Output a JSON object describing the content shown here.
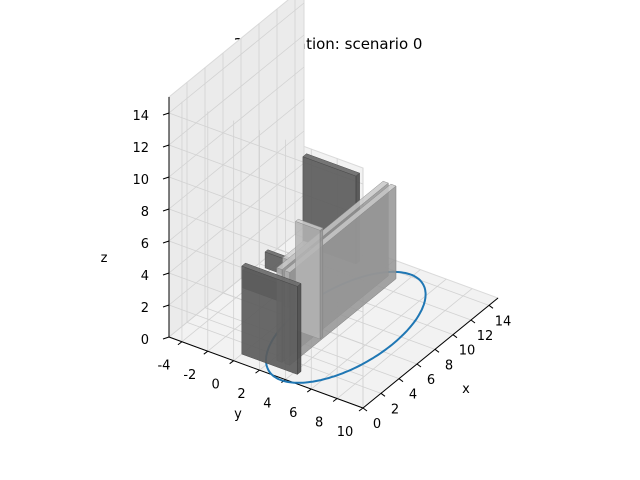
{
  "chart_data": {
    "type": "3d-line",
    "title": "3D animation: scenario 0",
    "xlabel": "x",
    "ylabel": "y",
    "zlabel": "z",
    "x_ticks": [
      0,
      2,
      4,
      6,
      8,
      10,
      12,
      14
    ],
    "y_ticks": [
      -4,
      -2,
      0,
      2,
      4,
      6,
      8,
      10
    ],
    "z_ticks": [
      0,
      2,
      4,
      6,
      8,
      10,
      12,
      14
    ],
    "xlim": [
      0,
      15
    ],
    "ylim": [
      -5,
      10
    ],
    "zlim": [
      0,
      15
    ],
    "grid": true,
    "trajectory": {
      "color": "#1f77b4",
      "shape": "ellipse",
      "center": [
        7.0,
        3.8,
        0
      ],
      "semi_axis_x": 7.2,
      "semi_axis_y": 3.6,
      "z": 0
    },
    "walls": [
      {
        "kind": "dark",
        "x": [
          0.9,
          1.3
        ],
        "y": [
          0,
          4.3
        ],
        "z": [
          0,
          5.5
        ],
        "color": "#5c5c5c"
      },
      {
        "kind": "dark",
        "x": [
          13.3,
          13.7
        ],
        "y": [
          -3.9,
          0.2
        ],
        "z": [
          0,
          5.5
        ],
        "color": "#5c5c5c"
      },
      {
        "kind": "light",
        "x": [
          1.5,
          13.3
        ],
        "y": [
          2.3,
          2.7
        ],
        "z": [
          0,
          5.8
        ],
        "color": "#aeaeae"
      },
      {
        "kind": "light",
        "x": [
          1.5,
          13.3
        ],
        "y": [
          2.9,
          3.3
        ],
        "z": [
          0,
          5.8
        ],
        "color": "#aeaeae"
      },
      {
        "kind": "light",
        "x": [
          5.0,
          5.3
        ],
        "y": [
          1.3,
          3.2
        ],
        "z": [
          0,
          6.8
        ],
        "color": "#b4b4b4"
      },
      {
        "kind": "dark",
        "x": [
          4.6,
          4.9
        ],
        "y": [
          -2.5,
          0.9
        ],
        "z": [
          1.7,
          2.8
        ],
        "color": "#5e5e5e"
      },
      {
        "kind": "dark",
        "x": [
          6.8,
          7.1
        ],
        "y": [
          -2.3,
          0.8
        ],
        "z": [
          2.0,
          3.0
        ],
        "color": "#5e5e5e"
      },
      {
        "kind": "light",
        "x": [
          4.6,
          6.9
        ],
        "y": [
          0.6,
          1.0
        ],
        "z": [
          1.5,
          4.5
        ],
        "color": "#b8b8b8"
      }
    ]
  }
}
